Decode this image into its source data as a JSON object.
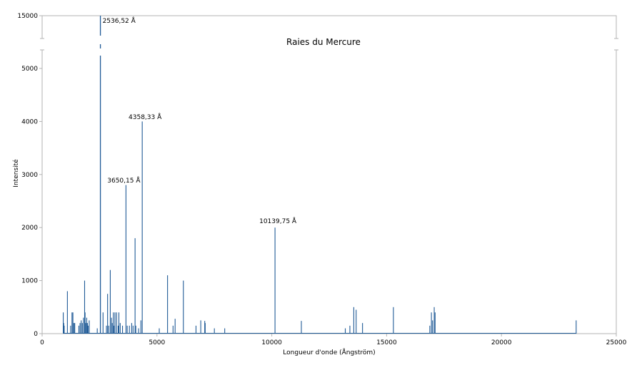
{
  "chart_data": {
    "type": "bar",
    "title": "Raies du Mercure",
    "xlabel": "Longueur d'onde (Ångström)",
    "ylabel": "Intensité",
    "xlim": [
      0,
      25000
    ],
    "ylim": [
      0,
      15000
    ],
    "axis_break": {
      "below": 5000,
      "above": 15000
    },
    "xticks": [
      "0",
      "5000",
      "10000",
      "15000",
      "20000",
      "25000"
    ],
    "yticks": [
      "0",
      "1000",
      "2000",
      "3000",
      "4000",
      "5000",
      "15000"
    ],
    "grid": false,
    "color": "#1f5a96",
    "annotations": [
      {
        "x": 2536.52,
        "text": "2536,52 Å"
      },
      {
        "x": 4358.33,
        "text": "4358,33 Å"
      },
      {
        "x": 3650.15,
        "text": "3650,15 Å"
      },
      {
        "x": 10139.75,
        "text": "10139,75 Å"
      }
    ],
    "lines": [
      {
        "x": 920,
        "y": 400
      },
      {
        "x": 940,
        "y": 200
      },
      {
        "x": 960,
        "y": 150
      },
      {
        "x": 1100,
        "y": 800
      },
      {
        "x": 1240,
        "y": 150
      },
      {
        "x": 1300,
        "y": 400
      },
      {
        "x": 1340,
        "y": 400
      },
      {
        "x": 1380,
        "y": 200
      },
      {
        "x": 1420,
        "y": 200
      },
      {
        "x": 1600,
        "y": 150
      },
      {
        "x": 1650,
        "y": 200
      },
      {
        "x": 1700,
        "y": 250
      },
      {
        "x": 1750,
        "y": 200
      },
      {
        "x": 1800,
        "y": 300
      },
      {
        "x": 1849.5,
        "y": 1000
      },
      {
        "x": 1870,
        "y": 400
      },
      {
        "x": 1900,
        "y": 200
      },
      {
        "x": 1942,
        "y": 300
      },
      {
        "x": 1972,
        "y": 200
      },
      {
        "x": 2000,
        "y": 150
      },
      {
        "x": 2050,
        "y": 250
      },
      {
        "x": 2400,
        "y": 100
      },
      {
        "x": 2536.52,
        "y": 15000
      },
      {
        "x": 2652,
        "y": 400
      },
      {
        "x": 2800,
        "y": 150
      },
      {
        "x": 2850,
        "y": 750
      },
      {
        "x": 2900,
        "y": 150
      },
      {
        "x": 2967,
        "y": 1200
      },
      {
        "x": 3021,
        "y": 300
      },
      {
        "x": 3050,
        "y": 200
      },
      {
        "x": 3100,
        "y": 400
      },
      {
        "x": 3125,
        "y": 150
      },
      {
        "x": 3170,
        "y": 400
      },
      {
        "x": 3240,
        "y": 400
      },
      {
        "x": 3312,
        "y": 150
      },
      {
        "x": 3342,
        "y": 400
      },
      {
        "x": 3400,
        "y": 200
      },
      {
        "x": 3500,
        "y": 150
      },
      {
        "x": 3650.15,
        "y": 2800
      },
      {
        "x": 3704,
        "y": 150
      },
      {
        "x": 3800,
        "y": 150
      },
      {
        "x": 3900,
        "y": 200
      },
      {
        "x": 3960,
        "y": 150
      },
      {
        "x": 4046.56,
        "y": 1800
      },
      {
        "x": 4078,
        "y": 150
      },
      {
        "x": 4200,
        "y": 100
      },
      {
        "x": 4300,
        "y": 250
      },
      {
        "x": 4358.33,
        "y": 4000
      },
      {
        "x": 5100,
        "y": 100
      },
      {
        "x": 5460.74,
        "y": 1100
      },
      {
        "x": 5700,
        "y": 150
      },
      {
        "x": 5790,
        "y": 280
      },
      {
        "x": 6150,
        "y": 1000
      },
      {
        "x": 6700,
        "y": 150
      },
      {
        "x": 6907,
        "y": 250
      },
      {
        "x": 7080,
        "y": 240
      },
      {
        "x": 7100,
        "y": 200
      },
      {
        "x": 7500,
        "y": 100
      },
      {
        "x": 7950,
        "y": 100
      },
      {
        "x": 10139.75,
        "y": 2000
      },
      {
        "x": 11287,
        "y": 240
      },
      {
        "x": 13200,
        "y": 100
      },
      {
        "x": 13400,
        "y": 150
      },
      {
        "x": 13570,
        "y": 500
      },
      {
        "x": 13673,
        "y": 450
      },
      {
        "x": 13950,
        "y": 200
      },
      {
        "x": 15295,
        "y": 500
      },
      {
        "x": 16880,
        "y": 150
      },
      {
        "x": 16950,
        "y": 400
      },
      {
        "x": 17000,
        "y": 250
      },
      {
        "x": 17072,
        "y": 500
      },
      {
        "x": 17110,
        "y": 400
      },
      {
        "x": 23253,
        "y": 250
      }
    ]
  }
}
